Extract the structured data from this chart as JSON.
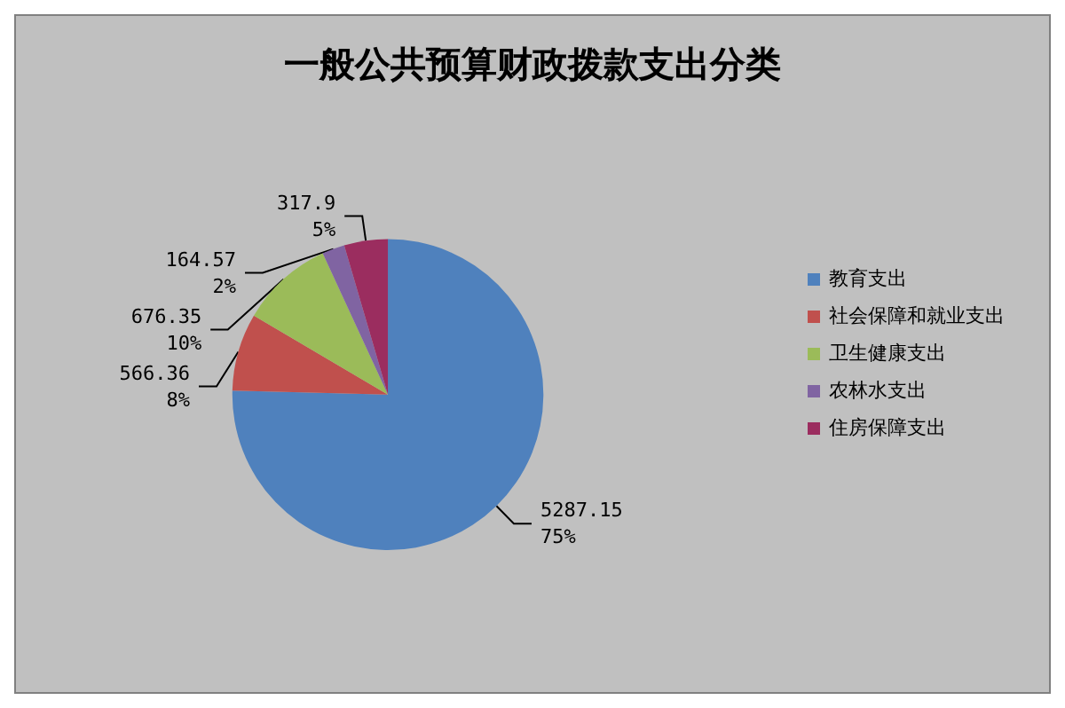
{
  "chart_data": {
    "type": "pie",
    "title": "一般公共预算财政拨款支出分类",
    "categories": [
      "教育支出",
      "社会保障和就业支出",
      "卫生健康支出",
      "农林水支出",
      "住房保障支出"
    ],
    "values": [
      5287.15,
      566.36,
      676.35,
      164.57,
      317.9
    ],
    "colors": [
      "#4f81bd",
      "#c0504d",
      "#9bbb59",
      "#8064a2",
      "#9b2d5f"
    ],
    "value_labels": [
      "5287.15\n75%",
      "566.36\n8%",
      "676.35\n10%",
      "164.57\n2%",
      "317.9\n5%"
    ],
    "legend": "right"
  }
}
